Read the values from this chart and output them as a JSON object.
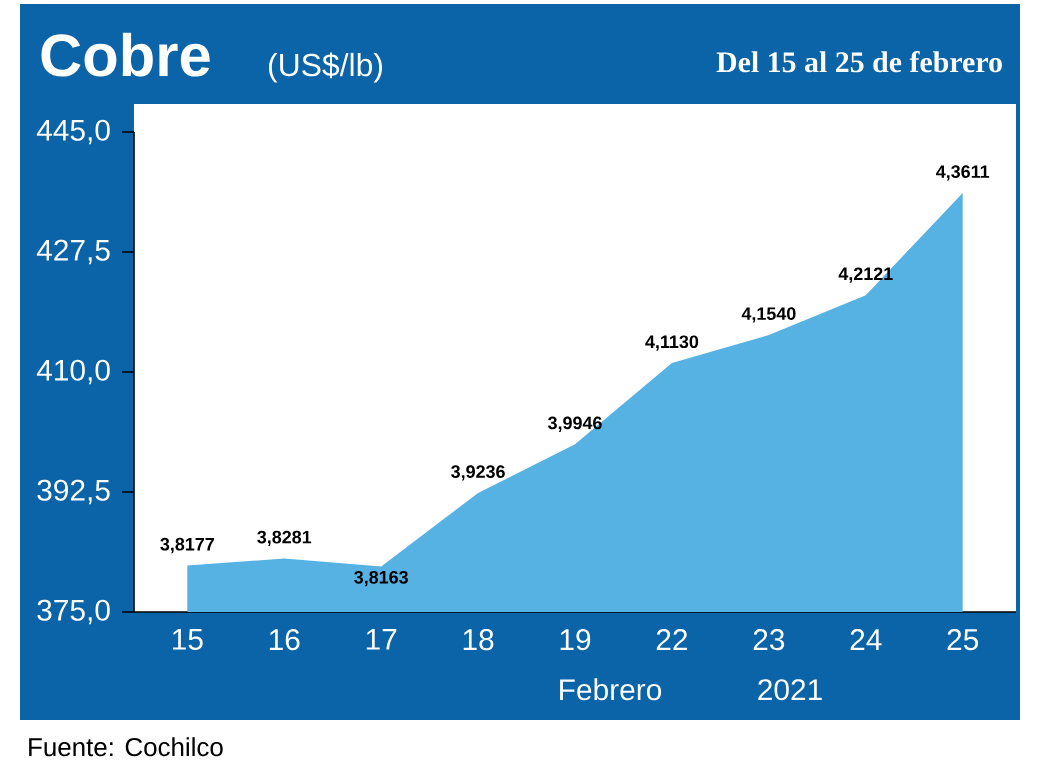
{
  "chart_data": {
    "type": "area",
    "title": "Cobre",
    "subtitle": "(US$/lb)",
    "xlabel": "Febrero",
    "annotations": [
      "Del 15 al 25 de febrero",
      "2021",
      "Fuente: Cochilco"
    ],
    "categories": [
      "15",
      "16",
      "17",
      "18",
      "19",
      "22",
      "23",
      "24",
      "25"
    ],
    "values": [
      381.77,
      382.81,
      381.63,
      392.36,
      399.46,
      411.3,
      415.4,
      421.21,
      436.11
    ],
    "value_labels": [
      "3,8177",
      "3,8281",
      "3,8163",
      "3,9236",
      "3,9946",
      "4,1130",
      "4,1540",
      "4,2121",
      "4,3611"
    ],
    "color": "#56b2e3",
    "ylim": [
      375,
      445
    ],
    "yticks": [
      {
        "value": 375,
        "label": "375,0"
      },
      {
        "value": 392.5,
        "label": "392,5"
      },
      {
        "value": 410,
        "label": "410,0"
      },
      {
        "value": 427.5,
        "label": "427,5"
      },
      {
        "value": 445,
        "label": "445,0"
      }
    ]
  }
}
